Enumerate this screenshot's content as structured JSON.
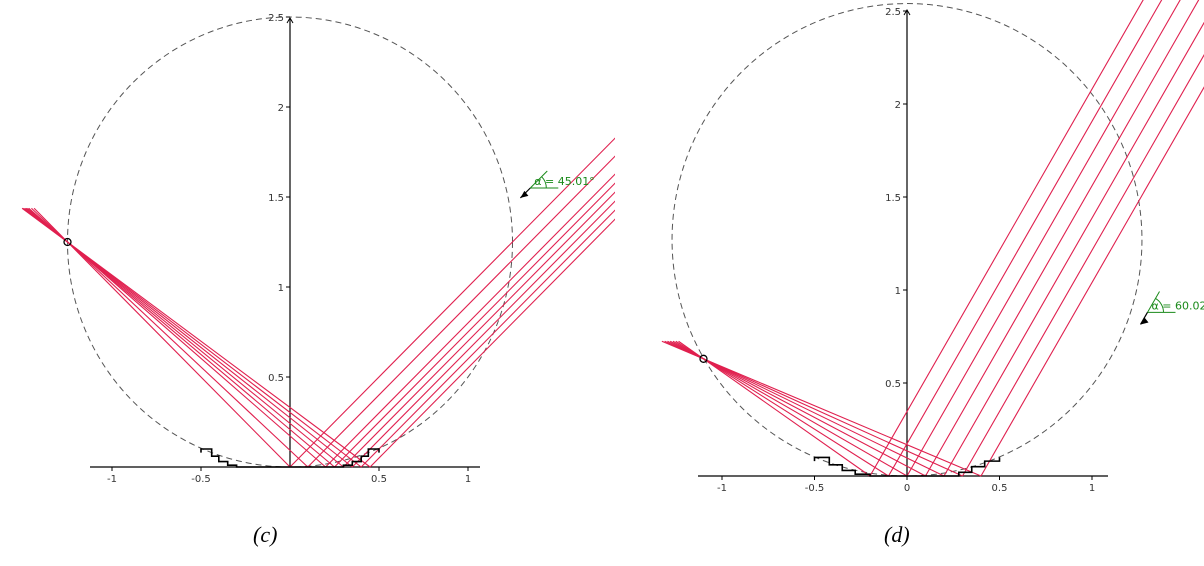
{
  "colors": {
    "ray": "#e0204f",
    "axis": "#000000",
    "circle": "#555555",
    "angle": "#1a8a1a",
    "profile": "#000000"
  },
  "panels": [
    {
      "caption": "(c)",
      "angle_label": "α = 45.01°",
      "angle_deg": 45.01,
      "x_ticks": [
        {
          "value": -1,
          "label": "-1"
        },
        {
          "value": -0.5,
          "label": "-0.5"
        },
        {
          "value": 0.5,
          "label": "0.5"
        },
        {
          "value": 1,
          "label": "1"
        }
      ],
      "y_ticks": [
        {
          "value": 0.5,
          "label": "0.5"
        },
        {
          "value": 1,
          "label": "1"
        },
        {
          "value": 1.5,
          "label": "1.5"
        },
        {
          "value": 2,
          "label": "2"
        },
        {
          "value": 2.5,
          "label": "2.5"
        }
      ],
      "focus": [
        -1.25,
        1.25
      ],
      "circle": {
        "cx": 0,
        "cy": 1.25,
        "r": 1.25
      },
      "profile": [
        [
          -0.5,
          0.08
        ],
        [
          -0.5,
          0.1
        ],
        [
          -0.44,
          0.1
        ],
        [
          -0.44,
          0.06
        ],
        [
          -0.4,
          0.06
        ],
        [
          -0.4,
          0.03
        ],
        [
          -0.35,
          0.03
        ],
        [
          -0.35,
          0.01
        ],
        [
          -0.3,
          0.01
        ],
        [
          -0.3,
          0
        ],
        [
          0.3,
          0
        ],
        [
          0.3,
          0.01
        ],
        [
          0.35,
          0.01
        ],
        [
          0.35,
          0.03
        ],
        [
          0.4,
          0.03
        ],
        [
          0.4,
          0.06
        ],
        [
          0.44,
          0.06
        ],
        [
          0.44,
          0.1
        ],
        [
          0.5,
          0.1
        ],
        [
          0.5,
          0.08
        ]
      ],
      "hits": [
        0.45,
        0.4,
        0.35,
        0.3,
        0.25,
        0.2,
        0.1,
        0
      ]
    },
    {
      "caption": "(d)",
      "angle_label": "α = 60.02°",
      "angle_deg": 60.02,
      "x_ticks": [
        {
          "value": -1,
          "label": "-1"
        },
        {
          "value": -0.5,
          "label": "-0.5"
        },
        {
          "value": 0,
          "label": "0"
        },
        {
          "value": 0.5,
          "label": "0.5"
        },
        {
          "value": 1,
          "label": "1"
        }
      ],
      "y_ticks": [
        {
          "value": 0.5,
          "label": "0.5"
        },
        {
          "value": 1,
          "label": "1"
        },
        {
          "value": 1.5,
          "label": "1.5"
        },
        {
          "value": 2,
          "label": "2"
        },
        {
          "value": 2.5,
          "label": "2.5"
        }
      ],
      "focus": [
        -1.1,
        0.63
      ],
      "circle": {
        "cx": 0,
        "cy": 1.27,
        "r": 1.27
      },
      "profile": [
        [
          -0.5,
          0.08
        ],
        [
          -0.5,
          0.1
        ],
        [
          -0.42,
          0.1
        ],
        [
          -0.42,
          0.06
        ],
        [
          -0.35,
          0.06
        ],
        [
          -0.35,
          0.03
        ],
        [
          -0.28,
          0.03
        ],
        [
          -0.28,
          0.01
        ],
        [
          -0.2,
          0.01
        ],
        [
          -0.2,
          0
        ],
        [
          0.28,
          0
        ],
        [
          0.28,
          0.02
        ],
        [
          0.35,
          0.02
        ],
        [
          0.35,
          0.05
        ],
        [
          0.42,
          0.05
        ],
        [
          0.42,
          0.08
        ],
        [
          0.5,
          0.08
        ],
        [
          0.5,
          0.1
        ]
      ],
      "hits": [
        0.4,
        0.3,
        0.2,
        0.1,
        0,
        -0.1,
        -0.2
      ]
    }
  ]
}
